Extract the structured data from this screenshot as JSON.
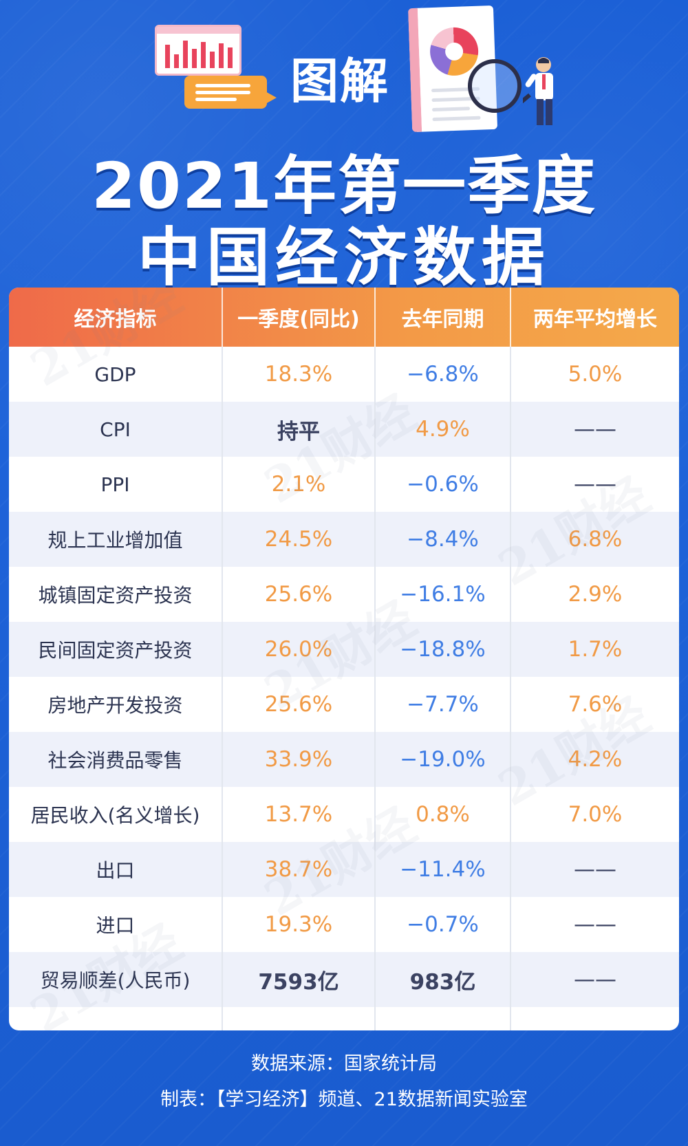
{
  "header": {
    "tag": "图解",
    "title_line1": "2021年第一季度",
    "title_line2": "中国经济数据"
  },
  "table": {
    "columns": [
      "经济指标",
      "一季度(同比)",
      "去年同期",
      "两年平均增长"
    ],
    "rows": [
      {
        "name": "GDP",
        "q1": "18.3%",
        "last_year": "−6.8%",
        "two_year": "5.0%"
      },
      {
        "name": "CPI",
        "q1": "持平",
        "last_year": "4.9%",
        "two_year": "——"
      },
      {
        "name": "PPI",
        "q1": "2.1%",
        "last_year": "−0.6%",
        "two_year": "——"
      },
      {
        "name": "规上工业增加值",
        "q1": "24.5%",
        "last_year": "−8.4%",
        "two_year": "6.8%"
      },
      {
        "name": "城镇固定资产投资",
        "q1": "25.6%",
        "last_year": "−16.1%",
        "two_year": "2.9%"
      },
      {
        "name": "民间固定资产投资",
        "q1": "26.0%",
        "last_year": "−18.8%",
        "two_year": "1.7%"
      },
      {
        "name": "房地产开发投资",
        "q1": "25.6%",
        "last_year": "−7.7%",
        "two_year": "7.6%"
      },
      {
        "name": "社会消费品零售",
        "q1": "33.9%",
        "last_year": "−19.0%",
        "two_year": "4.2%"
      },
      {
        "name": "居民收入(名义增长)",
        "q1": "13.7%",
        "last_year": "0.8%",
        "two_year": "7.0%"
      },
      {
        "name": "出口",
        "q1": "38.7%",
        "last_year": "−11.4%",
        "two_year": "——"
      },
      {
        "name": "进口",
        "q1": "19.3%",
        "last_year": "−0.7%",
        "two_year": "——"
      },
      {
        "name": "贸易顺差(人民币)",
        "q1": "7593亿",
        "last_year": "983亿",
        "two_year": "——"
      }
    ]
  },
  "watermark_text": "21财经",
  "footer": {
    "source": "数据来源：国家统计局",
    "credit": "制表：【学习经济】频道、21数据新闻实验室"
  },
  "colors": {
    "background": "#1e63d9",
    "header_orange": "#f39a47",
    "positive_orange": "#f19a45",
    "negative_blue": "#3f7de4"
  }
}
